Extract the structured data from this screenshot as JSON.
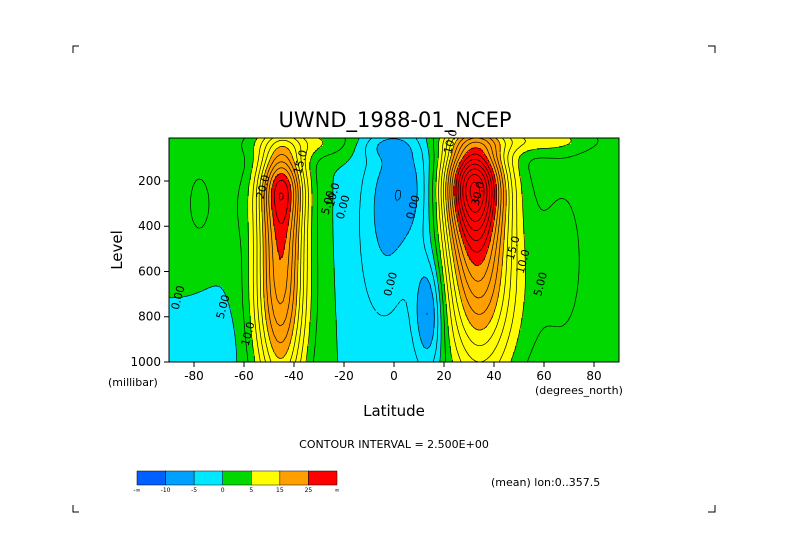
{
  "chart_data": {
    "type": "contour",
    "title": "UWND_1988-01_NCEP",
    "xlabel": "Latitude",
    "ylabel": "Level",
    "x_unit": "(degrees_north)",
    "y_unit": "(millibar)",
    "xlim": [
      -90,
      90
    ],
    "ylim": [
      1000,
      10
    ],
    "y_inverted": true,
    "x_ticks": [
      "-80",
      "-60",
      "-40",
      "-20",
      "0",
      "20",
      "40",
      "60",
      "80"
    ],
    "x_tick_values": [
      -80,
      -60,
      -40,
      -20,
      0,
      20,
      40,
      60,
      80
    ],
    "y_ticks": [
      "200",
      "400",
      "600",
      "800",
      "1000"
    ],
    "y_tick_values": [
      200,
      400,
      600,
      800,
      1000
    ],
    "contour_interval_text": "CONTOUR INTERVAL = 2.500E+00",
    "mean_text": "(mean) lon:0..357.5",
    "contour_labels": [
      {
        "text": "10.0",
        "lat": 24,
        "lev": 30
      },
      {
        "text": "15.0",
        "lat": -36,
        "lev": 120
      },
      {
        "text": "20.0",
        "lat": -51,
        "lev": 230
      },
      {
        "text": "10.0",
        "lat": -23,
        "lev": 265
      },
      {
        "text": "5.00",
        "lat": -25,
        "lev": 300
      },
      {
        "text": "0.00",
        "lat": -19,
        "lev": 320
      },
      {
        "text": "0.00",
        "lat": 9,
        "lev": 320
      },
      {
        "text": "30.0",
        "lat": 35,
        "lev": 260
      },
      {
        "text": "15.0",
        "lat": 49,
        "lev": 500
      },
      {
        "text": "10.0",
        "lat": 53,
        "lev": 560
      },
      {
        "text": "5.00",
        "lat": 60,
        "lev": 660
      },
      {
        "text": "0.00",
        "lat": 0,
        "lev": 660
      },
      {
        "text": "0.00",
        "lat": -85,
        "lev": 720
      },
      {
        "text": "5.00",
        "lat": -67,
        "lev": 760
      },
      {
        "text": "10.0",
        "lat": -57,
        "lev": 880
      }
    ],
    "colorbar": {
      "colors": [
        "#0060ff",
        "#00a0ff",
        "#00e8ff",
        "#00d800",
        "#ffff00",
        "#ffa000",
        "#ff0000"
      ],
      "tick_labels": [
        "-∞",
        "-10",
        "-5",
        "0",
        "5",
        "15",
        "25",
        "∞"
      ]
    },
    "jets": [
      {
        "lat": -45,
        "lev": 250,
        "peak": 27.5
      },
      {
        "lat": 32,
        "lev": 230,
        "peak": 37.5
      }
    ]
  }
}
